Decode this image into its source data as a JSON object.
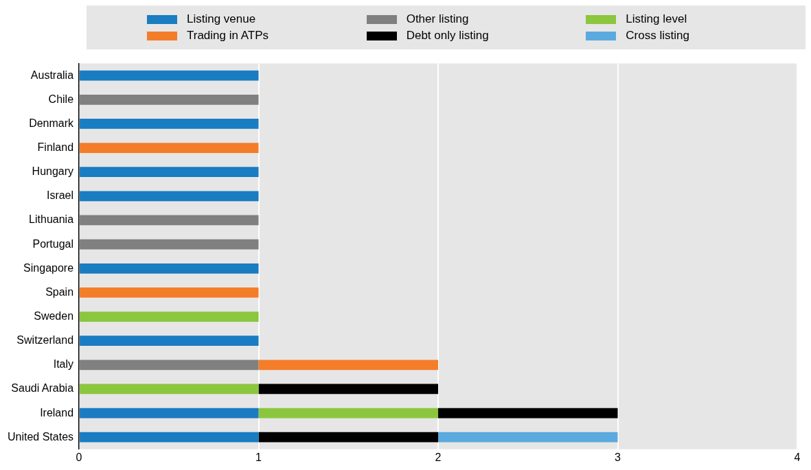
{
  "chart_data": {
    "type": "bar",
    "orientation": "horizontal",
    "stacked": true,
    "categories": [
      "Australia",
      "Chile",
      "Denmark",
      "Finland",
      "Hungary",
      "Israel",
      "Lithuania",
      "Portugal",
      "Singapore",
      "Spain",
      "Sweden",
      "Switzerland",
      "Italy",
      "Saudi Arabia",
      "Ireland",
      "United States"
    ],
    "series": [
      {
        "name": "Listing venue",
        "color": "#1a7cc1",
        "values": [
          1,
          null,
          1,
          null,
          1,
          1,
          null,
          null,
          1,
          null,
          null,
          1,
          null,
          null,
          1,
          1
        ]
      },
      {
        "name": "Other listing",
        "color": "#808080",
        "values": [
          null,
          1,
          null,
          null,
          null,
          null,
          1,
          1,
          null,
          null,
          null,
          null,
          1,
          null,
          null,
          null
        ]
      },
      {
        "name": "Listing level",
        "color": "#8cc63f",
        "values": [
          null,
          null,
          null,
          null,
          null,
          null,
          null,
          null,
          null,
          null,
          1,
          null,
          null,
          1,
          1,
          null
        ]
      },
      {
        "name": "Trading in ATPs",
        "color": "#f47d2a",
        "values": [
          null,
          null,
          null,
          1,
          null,
          null,
          null,
          null,
          null,
          1,
          null,
          null,
          1,
          null,
          null,
          null
        ]
      },
      {
        "name": "Debt only listing",
        "color": "#000000",
        "values": [
          null,
          null,
          null,
          null,
          null,
          null,
          null,
          null,
          null,
          null,
          null,
          null,
          null,
          1,
          1,
          1
        ]
      },
      {
        "name": "Cross listing",
        "color": "#5aaade",
        "values": [
          null,
          null,
          null,
          null,
          null,
          null,
          null,
          null,
          null,
          null,
          null,
          null,
          null,
          null,
          null,
          1
        ]
      }
    ],
    "xlim": [
      0,
      4
    ],
    "xticks": [
      0,
      1,
      2,
      3,
      4
    ],
    "grid": "x",
    "legend": "top"
  }
}
